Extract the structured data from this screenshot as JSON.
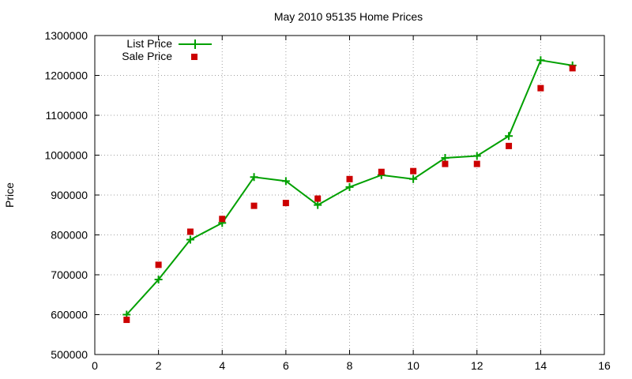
{
  "chart_data": {
    "type": "line",
    "title": "May 2010 95135 Home Prices",
    "xlabel": "",
    "ylabel": "Price",
    "xlim": [
      0,
      16
    ],
    "ylim": [
      500000,
      1300000
    ],
    "xticks": [
      "0",
      "2",
      "4",
      "6",
      "8",
      "10",
      "12",
      "14",
      "16"
    ],
    "yticks": [
      "500000",
      "600000",
      "700000",
      "800000",
      "900000",
      "1000000",
      "1100000",
      "1200000",
      "1300000"
    ],
    "grid": true,
    "legend_position": "top-left",
    "series": [
      {
        "name": "List Price",
        "style": "line+cross",
        "color": "#00a000",
        "x": [
          1,
          2,
          3,
          4,
          5,
          6,
          7,
          8,
          9,
          10,
          11,
          12,
          13,
          14,
          15
        ],
        "values": [
          600000,
          688000,
          788000,
          830000,
          945000,
          935000,
          875000,
          920000,
          950000,
          940000,
          993000,
          998000,
          1048000,
          1238000,
          1225000
        ]
      },
      {
        "name": "Sale Price",
        "style": "square",
        "color": "#cc0000",
        "x": [
          1,
          2,
          3,
          4,
          5,
          6,
          7,
          8,
          9,
          10,
          11,
          12,
          13,
          14,
          15
        ],
        "values": [
          587000,
          725000,
          808000,
          840000,
          873000,
          880000,
          891000,
          940000,
          958000,
          960000,
          978000,
          978000,
          1023000,
          1168000,
          1218000
        ]
      }
    ]
  }
}
